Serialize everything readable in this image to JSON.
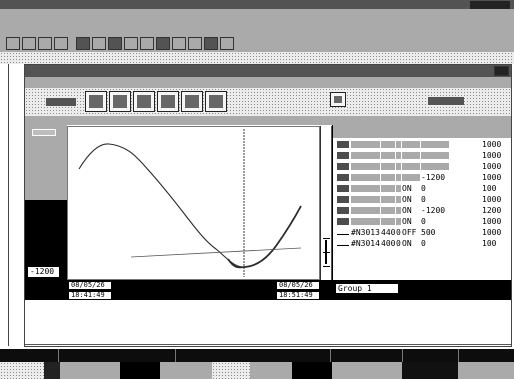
{
  "plot": {
    "y_min_label": "-1200"
  },
  "time_axis": {
    "start_date": "08/05/26",
    "start_time": "18:41:49",
    "end_date": "08/05/26",
    "end_time": "18:51:49"
  },
  "tag_list": {
    "group_label": "Group 1",
    "rows": [
      {
        "tag": "",
        "value": "",
        "decimal": "",
        "state": "",
        "low": "",
        "high": "1000"
      },
      {
        "tag": "",
        "value": "",
        "decimal": "",
        "state": "",
        "low": "",
        "high": "1000"
      },
      {
        "tag": "",
        "value": "",
        "decimal": "",
        "state": "",
        "low": "",
        "high": "1000"
      },
      {
        "tag": "",
        "value": "",
        "decimal": "",
        "state": "",
        "low": "-1200",
        "high": "1000"
      },
      {
        "tag": "",
        "value": "",
        "decimal": "",
        "state": "ON",
        "low": "0",
        "high": "100"
      },
      {
        "tag": "",
        "value": "",
        "decimal": "",
        "state": "ON",
        "low": "0",
        "high": "1000"
      },
      {
        "tag": "",
        "value": "",
        "decimal": "",
        "state": "ON",
        "low": "-1200",
        "high": "1200"
      },
      {
        "tag": "",
        "value": "",
        "decimal": "",
        "state": "ON",
        "low": "0",
        "high": "1000"
      },
      {
        "tag": "#N3013",
        "value": "440",
        "decimal": "0",
        "state": "OFF",
        "low": "500",
        "high": "1000"
      },
      {
        "tag": "#N3014",
        "value": "400",
        "decimal": "0",
        "state": "ON",
        "low": "0",
        "high": "100"
      }
    ]
  },
  "colors": {
    "trace": "#2b2b2b",
    "cursor": "#3a3a3a",
    "secondary": "#555555"
  }
}
